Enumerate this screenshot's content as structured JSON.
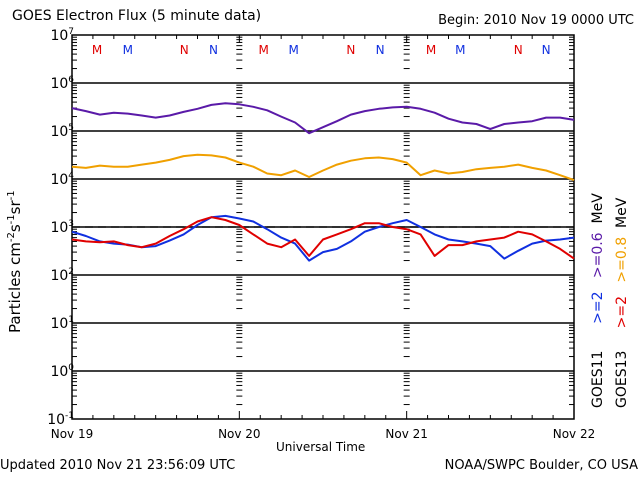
{
  "chart_data": {
    "type": "line",
    "title": "GOES Electron Flux (5 minute data)",
    "subtitle": "Begin: 2010 Nov 19 0000 UTC",
    "xlabel": "Universal Time",
    "ylabel": "Particles cm-2 s-1 sr-1",
    "ylabel_parts": {
      "base": "Particles cm",
      "e1": "-2",
      "s": "s",
      "e2": "-1",
      "sr": "sr",
      "e3": "-1"
    },
    "yscale": "log",
    "ylim": [
      0.1,
      10000000
    ],
    "y_ticks": [
      {
        "exp": "7"
      },
      {
        "exp": "6"
      },
      {
        "exp": "5"
      },
      {
        "exp": "4"
      },
      {
        "exp": "3"
      },
      {
        "exp": "2"
      },
      {
        "exp": "1"
      },
      {
        "exp": "0"
      },
      {
        "exp": "-1"
      }
    ],
    "xlim_hours": [
      0,
      72
    ],
    "x_ticks": [
      {
        "label": "Nov 19",
        "hour": 0
      },
      {
        "label": "Nov 20",
        "hour": 24
      },
      {
        "label": "Nov 21",
        "hour": 48
      },
      {
        "label": "Nov 22",
        "hour": 72
      }
    ],
    "grid": "decade lines",
    "threshold": {
      "value": 1000,
      "style": "dashed"
    },
    "markers": [
      {
        "label": "M",
        "hour": 3.6,
        "color": "#e00000"
      },
      {
        "label": "M",
        "hour": 8.0,
        "color": "#1030e0"
      },
      {
        "label": "N",
        "hour": 16.1,
        "color": "#e00000"
      },
      {
        "label": "N",
        "hour": 20.3,
        "color": "#1030e0"
      },
      {
        "label": "M",
        "hour": 27.5,
        "color": "#e00000"
      },
      {
        "label": "M",
        "hour": 31.8,
        "color": "#1030e0"
      },
      {
        "label": "N",
        "hour": 40.0,
        "color": "#e00000"
      },
      {
        "label": "N",
        "hour": 44.2,
        "color": "#1030e0"
      },
      {
        "label": "M",
        "hour": 51.5,
        "color": "#e00000"
      },
      {
        "label": "M",
        "hour": 55.7,
        "color": "#1030e0"
      },
      {
        "label": "N",
        "hour": 64.0,
        "color": "#e00000"
      },
      {
        "label": "N",
        "hour": 68.0,
        "color": "#1030e0"
      }
    ],
    "x_hours": [
      0,
      2,
      4,
      6,
      8,
      10,
      12,
      14,
      16,
      18,
      20,
      22,
      24,
      26,
      28,
      30,
      32,
      34,
      36,
      38,
      40,
      42,
      44,
      46,
      48,
      50,
      52,
      54,
      56,
      58,
      60,
      62,
      64,
      66,
      68,
      70,
      72
    ],
    "series": [
      {
        "name": ">=0.6 MeV GOES11",
        "color": "#5a1aa8",
        "values": [
          300000,
          260000,
          220000,
          240000,
          230000,
          210000,
          190000,
          210000,
          250000,
          290000,
          350000,
          380000,
          360000,
          320000,
          270000,
          200000,
          150000,
          90000,
          120000,
          160000,
          220000,
          260000,
          290000,
          310000,
          320000,
          290000,
          240000,
          180000,
          150000,
          140000,
          110000,
          140000,
          150000,
          160000,
          190000,
          190000,
          170000
        ]
      },
      {
        "name": ">=0.8 MeV GOES13",
        "color": "#f0a000",
        "values": [
          18000,
          17000,
          19000,
          18000,
          18000,
          20000,
          22000,
          25000,
          30000,
          32000,
          31000,
          28000,
          22000,
          18000,
          13000,
          12000,
          15000,
          11000,
          15000,
          20000,
          24000,
          27000,
          28000,
          26000,
          22000,
          12000,
          15000,
          13000,
          14000,
          16000,
          17000,
          18000,
          20000,
          17000,
          15000,
          12000,
          9500
        ]
      },
      {
        "name": ">=2 MeV GOES11",
        "color": "#1030e0",
        "values": [
          800,
          650,
          500,
          450,
          430,
          380,
          400,
          520,
          700,
          1100,
          1600,
          1700,
          1500,
          1300,
          900,
          600,
          450,
          200,
          300,
          350,
          500,
          800,
          1000,
          1200,
          1400,
          1000,
          700,
          550,
          500,
          450,
          400,
          220,
          320,
          450,
          520,
          550,
          600
        ]
      },
      {
        "name": ">=2 MeV GOES13",
        "color": "#e00000",
        "values": [
          550,
          500,
          480,
          500,
          420,
          380,
          450,
          650,
          900,
          1300,
          1600,
          1400,
          1100,
          700,
          450,
          380,
          550,
          250,
          550,
          700,
          900,
          1200,
          1200,
          1000,
          900,
          700,
          250,
          420,
          420,
          500,
          550,
          600,
          800,
          700,
          500,
          350,
          220
        ]
      }
    ],
    "legend": [
      {
        "text": "GOES11",
        "color": "#000000"
      },
      {
        "text": ">=2",
        "color": "#1030e0"
      },
      {
        "text": ">=0.6",
        "color": "#5a1aa8"
      },
      {
        "text": "MeV",
        "color": "#000000"
      },
      {
        "text": "GOES13",
        "color": "#000000"
      },
      {
        "text": ">=2",
        "color": "#e00000"
      },
      {
        "text": ">=0.8",
        "color": "#f0a000"
      },
      {
        "text": "MeV",
        "color": "#000000"
      }
    ]
  },
  "footer": {
    "updated": "Updated 2010 Nov 21 23:56:09 UTC",
    "credit": "NOAA/SWPC Boulder, CO USA"
  }
}
